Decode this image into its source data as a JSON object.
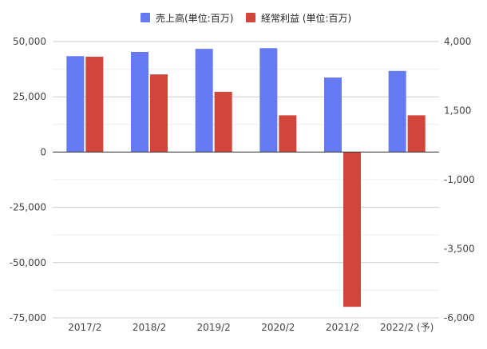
{
  "chart_data": {
    "type": "bar",
    "categories": [
      "2017/2",
      "2018/2",
      "2019/2",
      "2020/2",
      "2021/2",
      "2022/2 (予)"
    ],
    "series": [
      {
        "name": "売上高(単位:百万)",
        "axis": "left",
        "color": "#6579f2",
        "values": [
          43400,
          45300,
          46700,
          47000,
          33700,
          36700
        ]
      },
      {
        "name": "経常利益 (単位:百万)",
        "axis": "right",
        "color": "#d1453b",
        "values": [
          3450,
          2810,
          2180,
          1330,
          -5600,
          1330
        ]
      }
    ],
    "y_left": {
      "min": -75000,
      "max": 50000,
      "ticks": [
        50000,
        25000,
        0,
        -25000,
        -50000,
        -75000
      ],
      "tick_labels": [
        "50,000",
        "25,000",
        "0",
        "-25,000",
        "-50,000",
        "-75,000"
      ]
    },
    "y_right": {
      "min": -6000,
      "max": 4000,
      "ticks": [
        4000,
        1500,
        -1000,
        -3500,
        -6000
      ],
      "tick_labels": [
        "4,000",
        "1,500",
        "-1,000",
        "-3,500",
        "-6,000"
      ]
    },
    "grid": true,
    "legend_position": "top-center"
  }
}
